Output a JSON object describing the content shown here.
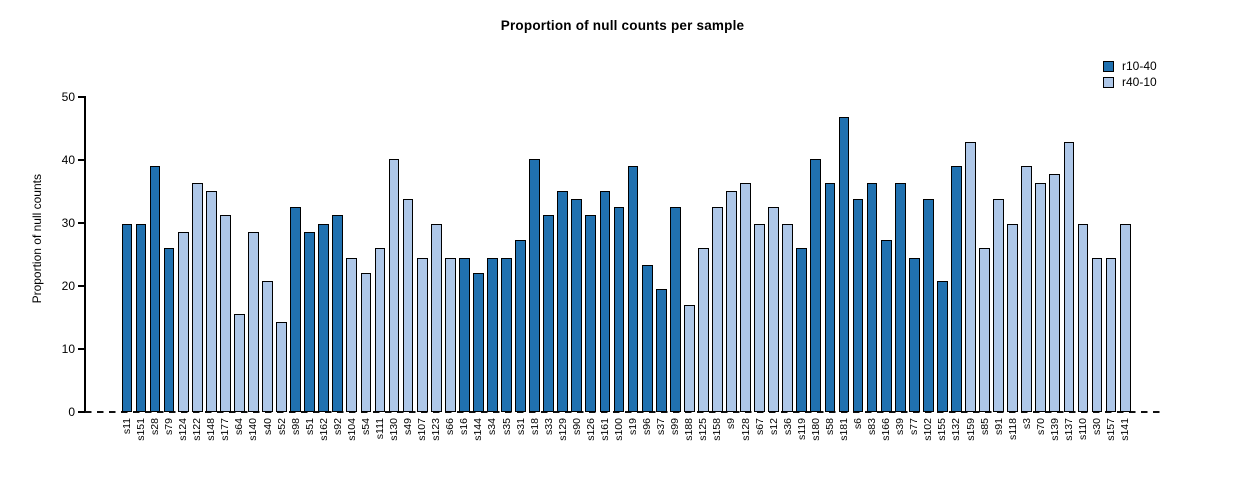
{
  "chart_data": {
    "type": "bar",
    "title": "Proportion of null counts per sample",
    "ylabel": "Proportion of null counts",
    "xlabel": "",
    "ylim": [
      0,
      50
    ],
    "yticks": [
      0,
      10,
      20,
      30,
      40,
      50
    ],
    "grid": false,
    "legend_position": "top-right",
    "baseline_style": "dashed-zero-line",
    "legend": [
      {
        "label": "r10-40",
        "color": "#2071B0"
      },
      {
        "label": "r40-10",
        "color": "#AEC7E8"
      }
    ],
    "categories": [
      "s11",
      "s151",
      "s28",
      "s79",
      "s124",
      "s122",
      "s148",
      "s177",
      "s64",
      "s140",
      "s40",
      "s52",
      "s98",
      "s51",
      "s162",
      "s92",
      "s104",
      "s54",
      "s111",
      "s130",
      "s49",
      "s107",
      "s123",
      "s66",
      "s16",
      "s144",
      "s34",
      "s35",
      "s31",
      "s18",
      "s33",
      "s129",
      "s90",
      "s126",
      "s161",
      "s100",
      "s19",
      "s96",
      "s37",
      "s99",
      "s188",
      "s125",
      "s158",
      "s9",
      "s128",
      "s67",
      "s12",
      "s36",
      "s119",
      "s180",
      "s58",
      "s181",
      "s6",
      "s83",
      "s166",
      "s39",
      "s77",
      "s102",
      "s155",
      "s132",
      "s159",
      "s85",
      "s91",
      "s118",
      "s3",
      "s70",
      "s139",
      "s137",
      "s110",
      "s30",
      "s157",
      "s141"
    ],
    "values": [
      29.8,
      29.8,
      39.0,
      26.0,
      28.6,
      36.4,
      35.1,
      31.2,
      15.6,
      28.6,
      20.8,
      14.3,
      32.5,
      28.6,
      29.8,
      31.2,
      24.5,
      22.1,
      26.0,
      40.2,
      33.8,
      24.5,
      29.8,
      24.5,
      24.5,
      22.1,
      24.5,
      24.5,
      27.3,
      40.2,
      31.2,
      35.1,
      33.8,
      31.2,
      35.1,
      32.5,
      39.0,
      23.4,
      19.5,
      32.5,
      17.0,
      26.0,
      32.5,
      35.1,
      36.4,
      29.8,
      32.5,
      29.8,
      26.0,
      40.2,
      36.4,
      46.8,
      33.8,
      36.4,
      27.3,
      36.4,
      24.5,
      33.8,
      20.8,
      39.0,
      42.8,
      26.0,
      33.8,
      29.8,
      39.0,
      36.4,
      37.7,
      42.8,
      29.8,
      24.5,
      24.5,
      29.8
    ],
    "bar_series": [
      "r10-40",
      "r10-40",
      "r10-40",
      "r10-40",
      "r40-10",
      "r40-10",
      "r40-10",
      "r40-10",
      "r40-10",
      "r40-10",
      "r40-10",
      "r40-10",
      "r10-40",
      "r10-40",
      "r10-40",
      "r10-40",
      "r40-10",
      "r40-10",
      "r40-10",
      "r40-10",
      "r40-10",
      "r40-10",
      "r40-10",
      "r40-10",
      "r10-40",
      "r10-40",
      "r10-40",
      "r10-40",
      "r10-40",
      "r10-40",
      "r10-40",
      "r10-40",
      "r10-40",
      "r10-40",
      "r10-40",
      "r10-40",
      "r10-40",
      "r10-40",
      "r10-40",
      "r10-40",
      "r40-10",
      "r40-10",
      "r40-10",
      "r40-10",
      "r40-10",
      "r40-10",
      "r40-10",
      "r40-10",
      "r10-40",
      "r10-40",
      "r10-40",
      "r10-40",
      "r10-40",
      "r10-40",
      "r10-40",
      "r10-40",
      "r10-40",
      "r10-40",
      "r10-40",
      "r10-40",
      "r40-10",
      "r40-10",
      "r40-10",
      "r40-10",
      "r40-10",
      "r40-10",
      "r40-10",
      "r40-10",
      "r40-10",
      "r40-10",
      "r40-10",
      "r40-10"
    ]
  }
}
